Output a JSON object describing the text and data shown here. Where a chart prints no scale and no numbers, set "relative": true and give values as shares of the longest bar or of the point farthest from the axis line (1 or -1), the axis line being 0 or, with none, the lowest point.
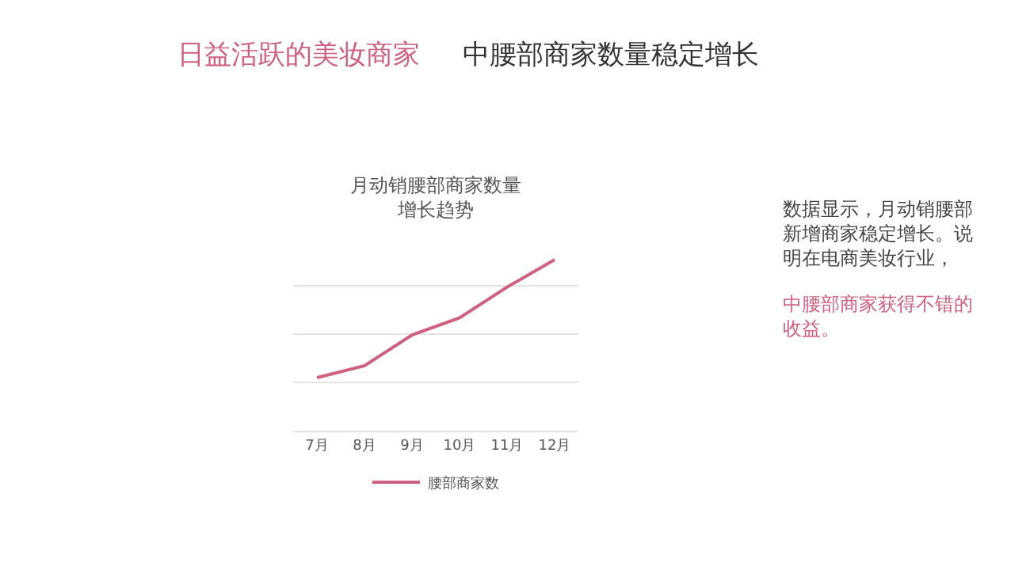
{
  "chart_data": {
    "type": "line",
    "title": "月动销腰部商家数量增长趋势",
    "categories": [
      "7月",
      "8月",
      "9月",
      "10月",
      "11月",
      "12月"
    ],
    "series": [
      {
        "name": "腰部商家数",
        "color": "#d0607f",
        "values": [
          0.31,
          0.38,
          0.56,
          0.66,
          0.84,
          1
        ]
      }
    ],
    "relative": true,
    "grid": "y",
    "legend": "bottom",
    "marker": "none",
    "line_style": "solid",
    "annotations": [
      "日益活跃的美妆商家",
      "中腰部商家数量稳定增长",
      "数据显示，月动销腰部新增商家稳定增长。说明在电商美妆行业，",
      "中腰部商家获得不错的收益。"
    ]
  }
}
